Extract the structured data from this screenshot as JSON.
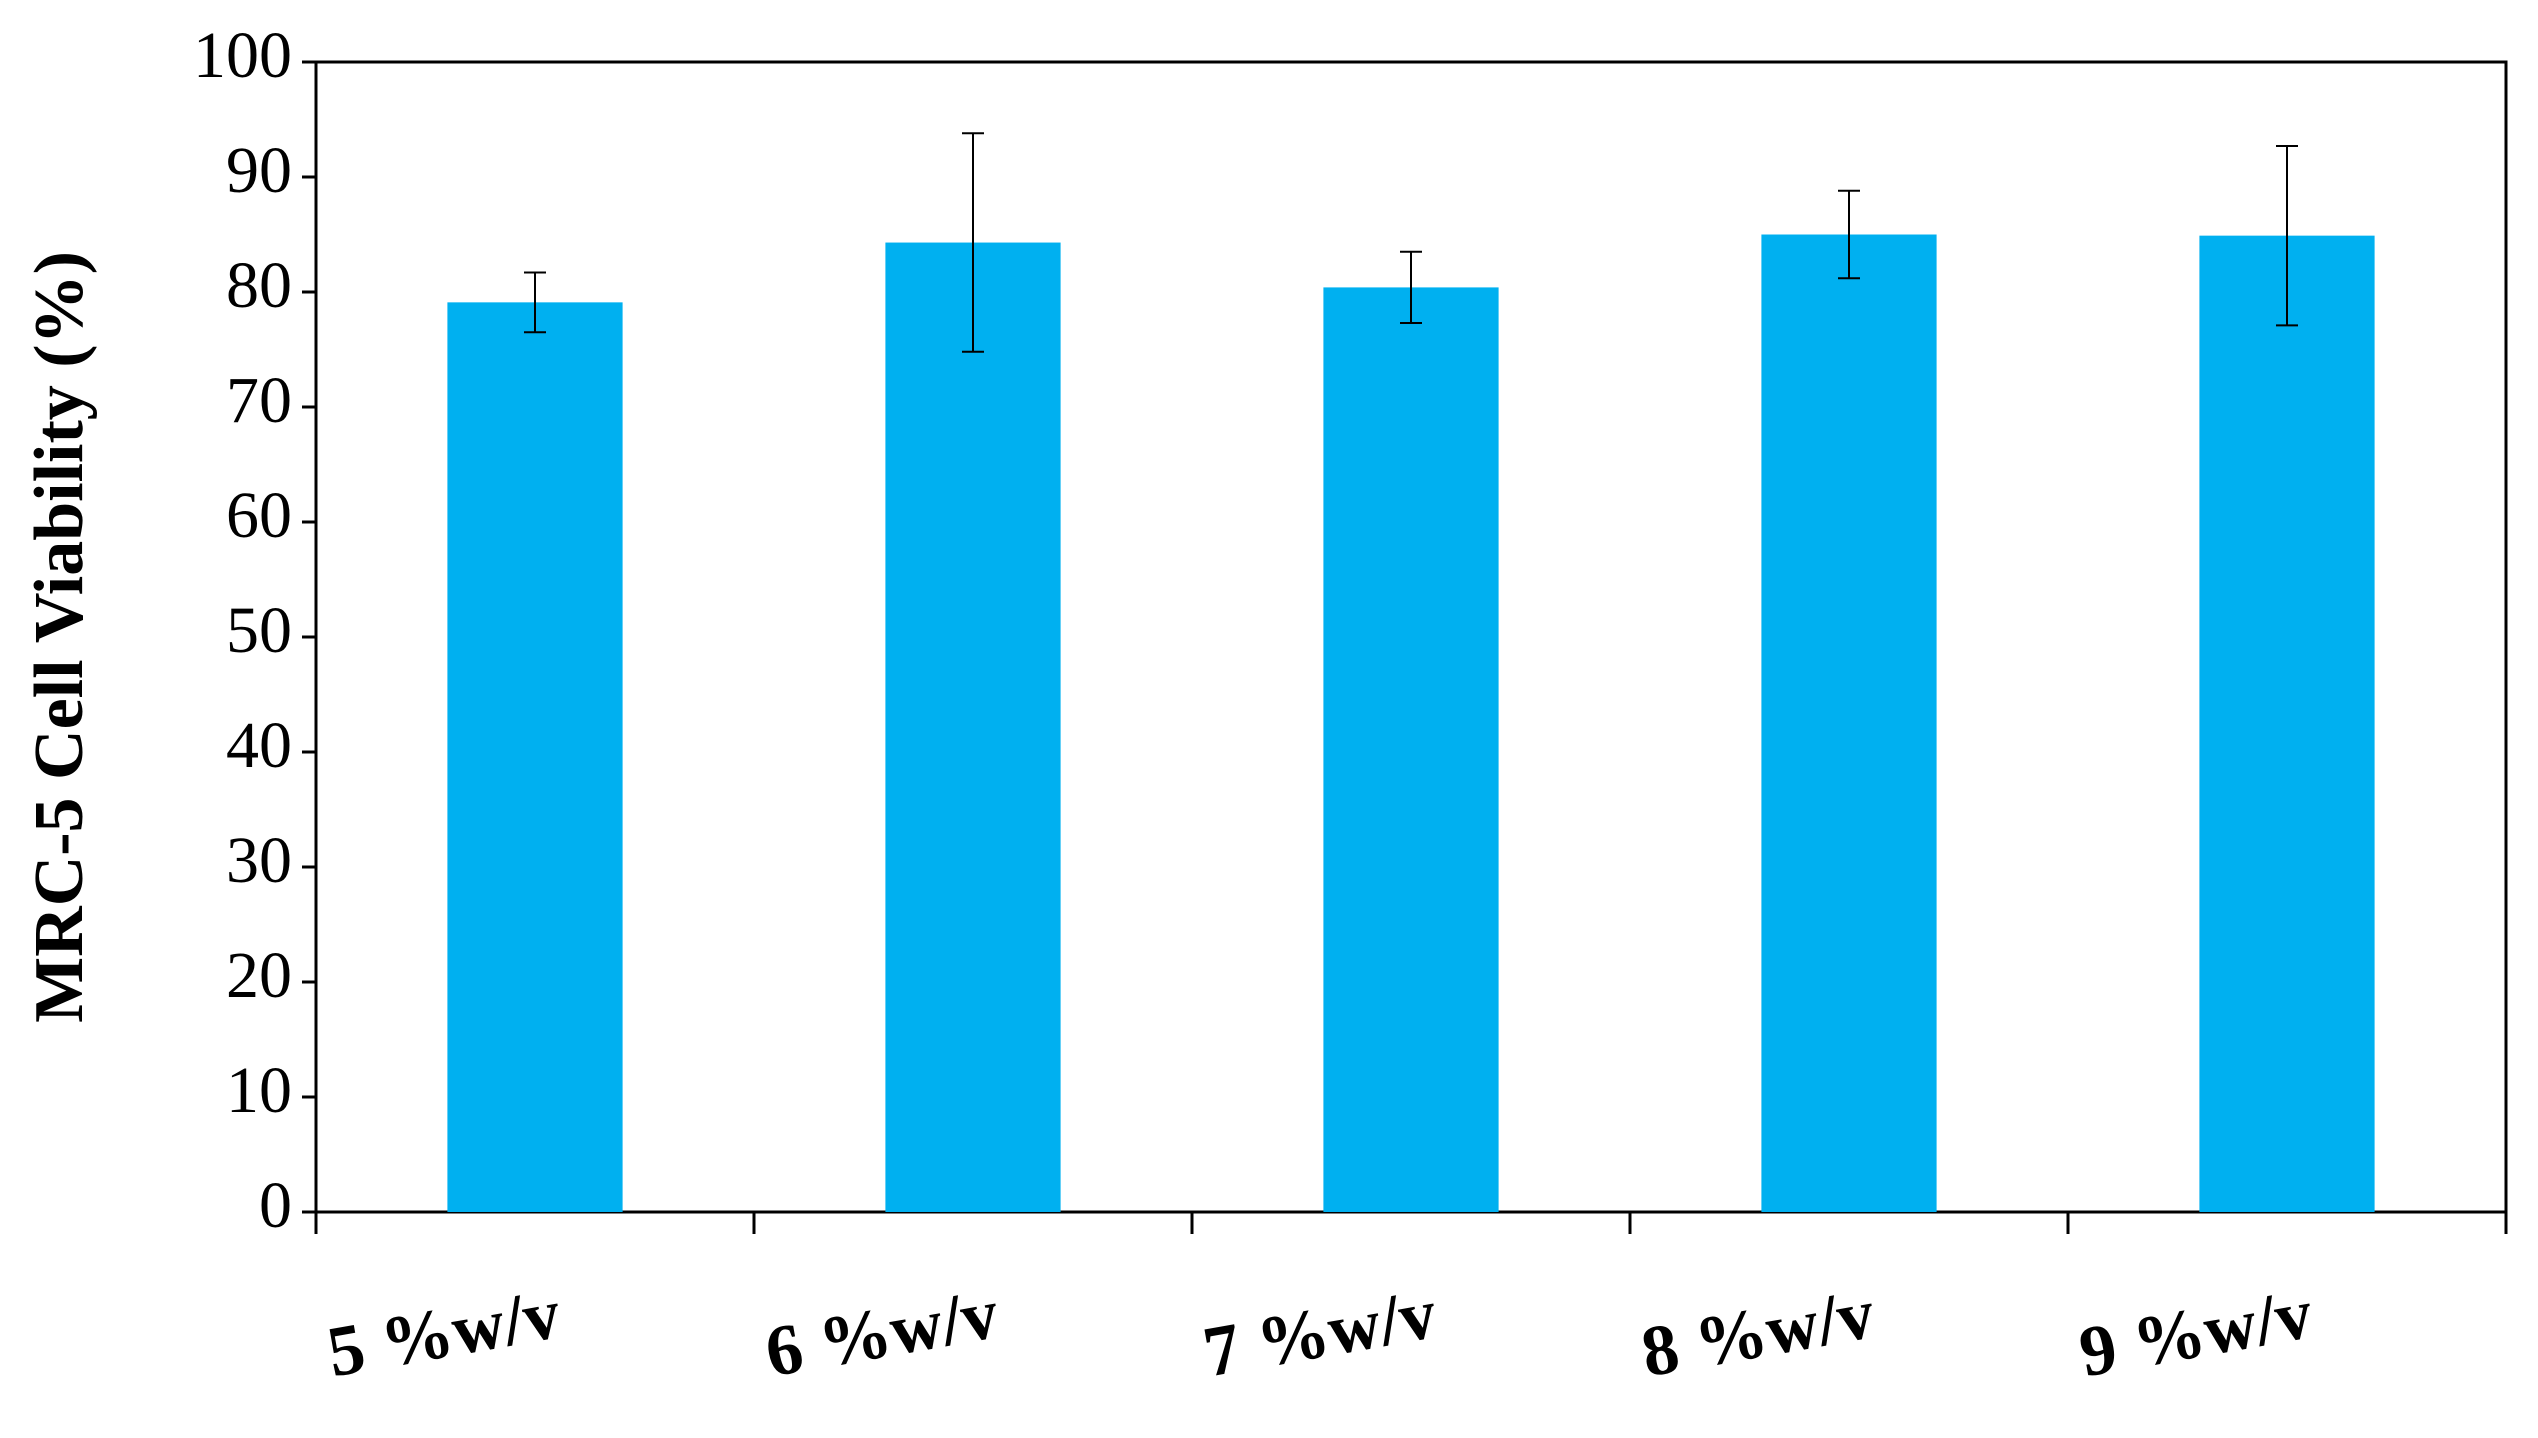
{
  "chart_data": {
    "type": "bar",
    "y_label": "MRC-5 Cell Viability (%)",
    "categories": [
      "5 %w/v",
      "6 %w/v",
      "7 %w/v",
      "8 %w/v",
      "9 %w/v"
    ],
    "values": [
      79.1,
      84.3,
      80.4,
      85.0,
      84.9
    ],
    "errors": [
      2.6,
      9.5,
      3.1,
      3.8,
      7.8
    ],
    "color": "#00b0f0",
    "ylim": [
      0,
      100
    ],
    "yticks": [
      0,
      10,
      20,
      30,
      40,
      50,
      60,
      70,
      80,
      90,
      100
    ],
    "grid": false
  }
}
